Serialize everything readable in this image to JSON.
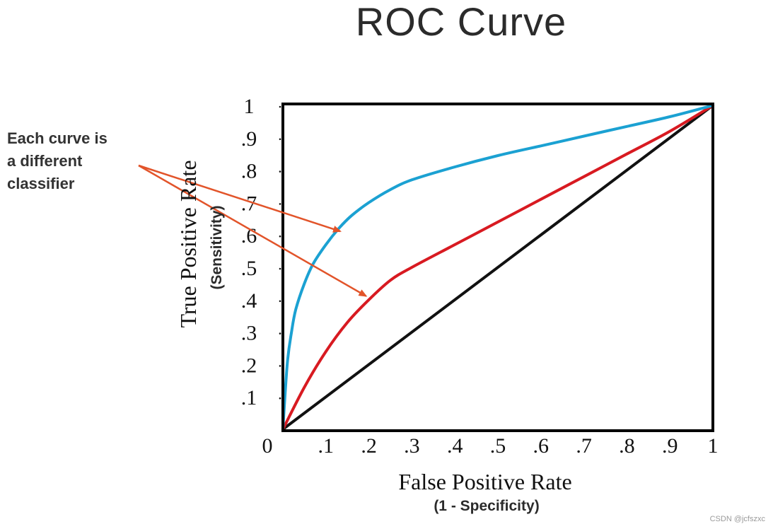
{
  "chart_data": {
    "type": "line",
    "title": "ROC Curve",
    "xlabel": "False Positive Rate",
    "xlabel_sub": "(1 - Specificity)",
    "ylabel": "True Positive Rate",
    "ylabel_sub": "(Sensitivity)",
    "xlim": [
      0,
      1
    ],
    "ylim": [
      0,
      1
    ],
    "x_ticks": [
      "0",
      ".1",
      ".2",
      ".3",
      ".4",
      ".5",
      ".6",
      ".7",
      ".8",
      ".9",
      "1"
    ],
    "y_ticks": [
      ".1",
      ".2",
      ".3",
      ".4",
      ".5",
      ".6",
      ".7",
      ".8",
      ".9",
      "1"
    ],
    "series": [
      {
        "name": "classifier-blue",
        "color": "#1ba1d2",
        "x": [
          0,
          0.01,
          0.02,
          0.03,
          0.05,
          0.07,
          0.1,
          0.13,
          0.16,
          0.2,
          0.25,
          0.3,
          0.4,
          0.5,
          0.6,
          0.7,
          0.8,
          0.9,
          1.0
        ],
        "y": [
          0,
          0.2,
          0.3,
          0.37,
          0.45,
          0.51,
          0.57,
          0.62,
          0.66,
          0.7,
          0.74,
          0.77,
          0.81,
          0.845,
          0.875,
          0.905,
          0.935,
          0.965,
          1.0
        ]
      },
      {
        "name": "classifier-red",
        "color": "#d81a21",
        "x": [
          0,
          0.05,
          0.1,
          0.15,
          0.2,
          0.25,
          0.3,
          0.4,
          0.5,
          0.6,
          0.7,
          0.8,
          0.9,
          1.0
        ],
        "y": [
          0,
          0.13,
          0.24,
          0.33,
          0.4,
          0.46,
          0.5,
          0.57,
          0.64,
          0.71,
          0.78,
          0.85,
          0.92,
          1.0
        ]
      },
      {
        "name": "random-baseline",
        "color": "#111111",
        "x": [
          0,
          1
        ],
        "y": [
          0,
          1
        ]
      }
    ],
    "annotation": {
      "lines": [
        "Each curve is",
        "a different",
        "classifier"
      ],
      "arrow_color": "#e2542a",
      "arrow_targets": [
        {
          "x": 0.14,
          "y": 0.62
        },
        {
          "x": 0.2,
          "y": 0.42
        }
      ]
    }
  },
  "watermark": "CSDN @jcfszxc"
}
